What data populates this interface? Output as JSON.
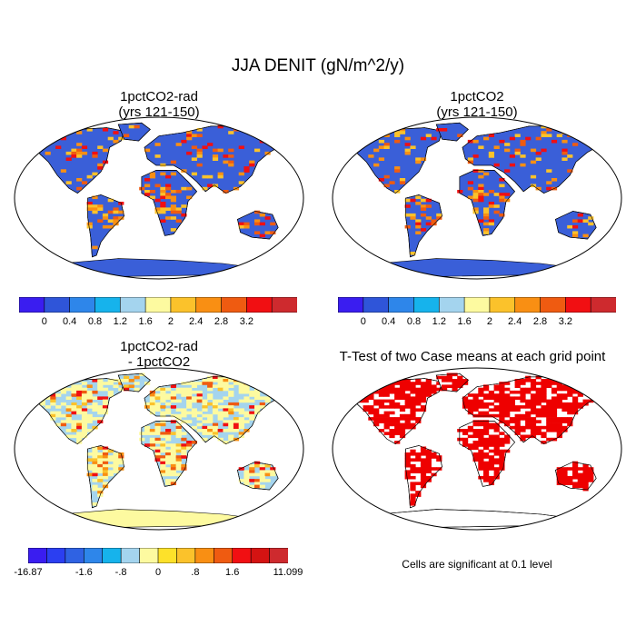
{
  "figure": {
    "title": "JJA DENIT (gN/m^2/y)",
    "panels": [
      {
        "id": "p1",
        "title_lines": [
          "1pctCO2-rad",
          "(yrs 121-150)"
        ],
        "kind": "field",
        "ocean": "#3a5fd8"
      },
      {
        "id": "p2",
        "title_lines": [
          "1pctCO2",
          "(yrs 121-150)"
        ],
        "kind": "field",
        "ocean": "#3a5fd8"
      },
      {
        "id": "p3",
        "title_lines": [
          "1pctCO2-rad",
          "- 1pctCO2"
        ],
        "kind": "difference"
      },
      {
        "id": "p4",
        "title_lines": [
          "T-Test of two Case means at each grid point",
          ""
        ],
        "kind": "ttest"
      }
    ],
    "colorbar_top": {
      "colors": [
        "#3a1df0",
        "#2f55d9",
        "#2e86ea",
        "#16b3ec",
        "#a4d4ee",
        "#fdfaa0",
        "#fbc22b",
        "#f98f13",
        "#ef5b11",
        "#f10f12",
        "#ce2a2e"
      ],
      "labels": [
        "0",
        "0.4",
        "0.8",
        "1.2",
        "1.6",
        "2",
        "2.4",
        "2.8",
        "3.2"
      ]
    },
    "colorbar_diff": {
      "colors": [
        "#3a1df0",
        "#2b3ff1",
        "#2f62e3",
        "#2e86ea",
        "#16b3ec",
        "#a4d4ee",
        "#fdfaa0",
        "#fde12a",
        "#fbc22b",
        "#f98f13",
        "#ef5b11",
        "#f10f12",
        "#d41312",
        "#ce2a2e"
      ],
      "labels": [
        "-16.87",
        "-1.6",
        "-.8",
        "0",
        ".8",
        "1.6",
        "11.099"
      ]
    },
    "note": "Cells are significant at 0.1 level",
    "colors": {
      "field_background": "#3a5fd8",
      "diff_background": "#a4d4ee",
      "antarctica_diff": "#fdfaa0",
      "significant": "#ee0000",
      "hot": [
        "#fbc22b",
        "#f98f13",
        "#ef5b11",
        "#f10f12"
      ]
    }
  }
}
